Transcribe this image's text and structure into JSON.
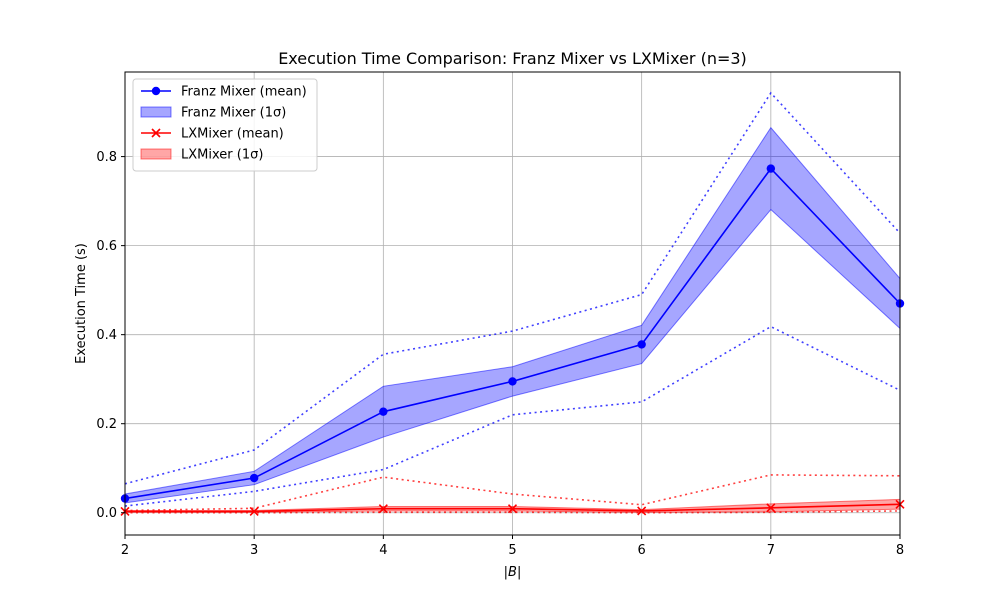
{
  "chart_data": {
    "type": "line",
    "title": "Execution Time Comparison: Franz Mixer vs LXMixer (n=3)",
    "xlabel": "|B|",
    "ylabel": "Execution Time (s)",
    "x": [
      2,
      3,
      4,
      5,
      6,
      7,
      8
    ],
    "xlim": [
      2,
      8
    ],
    "ylim": [
      -0.05,
      0.99
    ],
    "xticks": [
      "2",
      "3",
      "4",
      "5",
      "6",
      "7",
      "8"
    ],
    "yticks": [
      "0.0",
      "0.2",
      "0.4",
      "0.6",
      "0.8"
    ],
    "grid": true,
    "legend_position": "top-left",
    "series": [
      {
        "name": "Franz Mixer (mean)",
        "kind": "mean",
        "color": "#0000ff",
        "marker": "circle",
        "values": [
          0.032,
          0.078,
          0.227,
          0.295,
          0.378,
          0.773,
          0.47
        ]
      },
      {
        "name": "Franz Mixer (1σ)",
        "kind": "band",
        "color": "#0000ff",
        "lower": [
          0.022,
          0.063,
          0.17,
          0.262,
          0.335,
          0.681,
          0.414
        ],
        "upper": [
          0.042,
          0.093,
          0.284,
          0.328,
          0.421,
          0.865,
          0.526
        ]
      },
      {
        "name": "Franz Mixer range",
        "kind": "range",
        "color": "#0000ff",
        "min": [
          0.015,
          0.048,
          0.097,
          0.22,
          0.249,
          0.418,
          0.275
        ],
        "max": [
          0.065,
          0.141,
          0.356,
          0.408,
          0.49,
          0.943,
          0.628
        ]
      },
      {
        "name": "LXMixer (mean)",
        "kind": "mean",
        "color": "#ff0000",
        "marker": "x",
        "values": [
          0.003,
          0.003,
          0.009,
          0.009,
          0.004,
          0.011,
          0.019
        ]
      },
      {
        "name": "LXMixer (1σ)",
        "kind": "band",
        "color": "#ff0000",
        "lower": [
          0.001,
          0.001,
          0.004,
          0.004,
          0.001,
          0.002,
          0.008
        ],
        "upper": [
          0.005,
          0.005,
          0.014,
          0.014,
          0.007,
          0.02,
          0.03
        ]
      },
      {
        "name": "LXMixer range",
        "kind": "range",
        "color": "#ff0000",
        "min": [
          0.0,
          0.0,
          0.001,
          0.001,
          0.0,
          0.001,
          0.004
        ],
        "max": [
          0.005,
          0.01,
          0.08,
          0.042,
          0.018,
          0.085,
          0.083
        ]
      }
    ],
    "legend": [
      "Franz Mixer (mean)",
      "Franz Mixer (1σ)",
      "LXMixer (mean)",
      "LXMixer (1σ)"
    ]
  }
}
